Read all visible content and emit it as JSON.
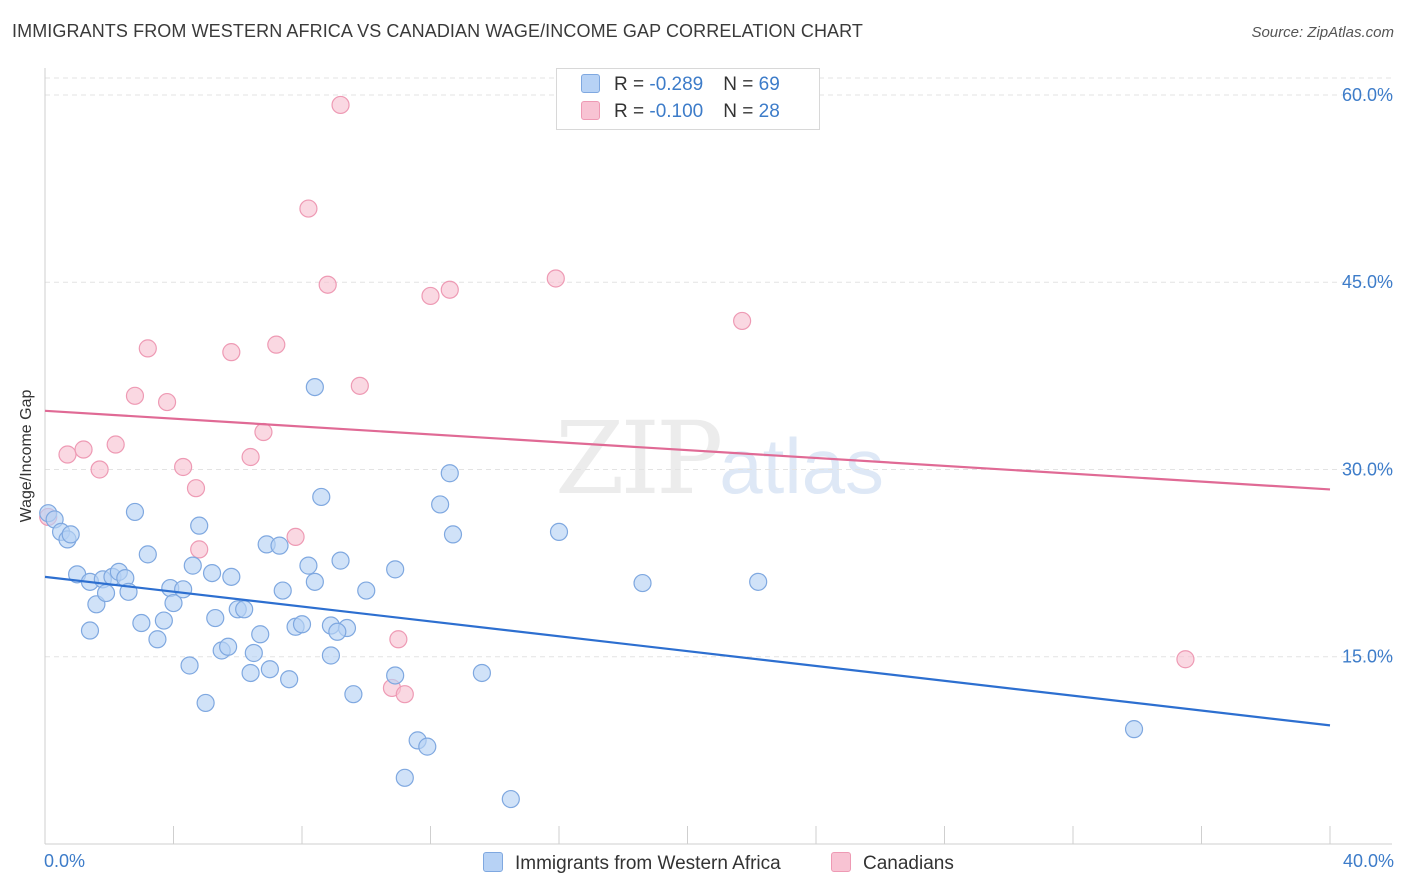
{
  "title": "IMMIGRANTS FROM WESTERN AFRICA VS CANADIAN WAGE/INCOME GAP CORRELATION CHART",
  "source": "Source: ZipAtlas.com",
  "watermark": {
    "zip": "ZIP",
    "atlas": "atlas"
  },
  "legend": {
    "rows": [
      {
        "r_label": "R = ",
        "r_value": "-0.289",
        "n_label": "N = ",
        "n_value": "69"
      },
      {
        "r_label": "R = ",
        "r_value": "-0.100",
        "n_label": "N = ",
        "n_value": "28"
      }
    ]
  },
  "bottom_legend": {
    "series1": "Immigrants from Western Africa",
    "series2": "Canadians"
  },
  "colors": {
    "blue_fill": "#b7d2f5",
    "blue_stroke": "#7fa8e0",
    "blue_line": "#2d6fd0",
    "pink_fill": "#f8c3d3",
    "pink_stroke": "#ee9ab4",
    "pink_line": "#e06a95",
    "tick_text": "#3d7cc9",
    "grid": "#e3e3e3"
  },
  "chart_data": {
    "type": "scatter",
    "title": "IMMIGRANTS FROM WESTERN AFRICA VS CANADIAN WAGE/INCOME GAP CORRELATION CHART",
    "xlabel": "",
    "ylabel": "Wage/Income Gap",
    "xlim": [
      0,
      40
    ],
    "ylim": [
      0,
      62
    ],
    "x_tick_labels": [
      "0.0%",
      "40.0%"
    ],
    "y_ticks": [
      15,
      30,
      45,
      60
    ],
    "y_tick_labels": [
      "15.0%",
      "30.0%",
      "45.0%",
      "60.0%"
    ],
    "grid": "horizontal dashed",
    "legend_position": "top-center",
    "series": [
      {
        "name": "Immigrants from Western Africa",
        "r": -0.289,
        "n": 69,
        "trend": {
          "x": [
            0,
            40
          ],
          "y": [
            21.4,
            9.5
          ]
        },
        "points": [
          [
            0.1,
            26.5
          ],
          [
            0.3,
            26.0
          ],
          [
            0.5,
            25.0
          ],
          [
            0.7,
            24.4
          ],
          [
            0.8,
            24.8
          ],
          [
            1.0,
            21.6
          ],
          [
            1.4,
            17.1
          ],
          [
            1.4,
            21.0
          ],
          [
            1.6,
            19.2
          ],
          [
            1.8,
            21.2
          ],
          [
            1.9,
            20.1
          ],
          [
            2.1,
            21.4
          ],
          [
            2.3,
            21.8
          ],
          [
            2.5,
            21.3
          ],
          [
            2.6,
            20.2
          ],
          [
            2.8,
            26.6
          ],
          [
            3.0,
            17.7
          ],
          [
            3.2,
            23.2
          ],
          [
            3.5,
            16.4
          ],
          [
            3.7,
            17.9
          ],
          [
            3.9,
            20.5
          ],
          [
            4.0,
            19.3
          ],
          [
            4.3,
            20.4
          ],
          [
            4.5,
            14.3
          ],
          [
            4.6,
            22.3
          ],
          [
            4.8,
            25.5
          ],
          [
            5.0,
            11.3
          ],
          [
            5.2,
            21.7
          ],
          [
            5.3,
            18.1
          ],
          [
            5.5,
            15.5
          ],
          [
            5.7,
            15.8
          ],
          [
            5.8,
            21.4
          ],
          [
            6.0,
            18.8
          ],
          [
            6.2,
            18.8
          ],
          [
            6.4,
            13.7
          ],
          [
            6.5,
            15.3
          ],
          [
            6.7,
            16.8
          ],
          [
            6.9,
            24.0
          ],
          [
            7.0,
            14.0
          ],
          [
            7.3,
            23.9
          ],
          [
            7.4,
            20.3
          ],
          [
            7.6,
            13.2
          ],
          [
            7.8,
            17.4
          ],
          [
            8.0,
            17.6
          ],
          [
            8.2,
            22.3
          ],
          [
            8.4,
            21.0
          ],
          [
            8.4,
            36.6
          ],
          [
            8.6,
            27.8
          ],
          [
            8.9,
            15.1
          ],
          [
            8.9,
            17.5
          ],
          [
            9.2,
            22.7
          ],
          [
            9.4,
            17.3
          ],
          [
            9.6,
            12.0
          ],
          [
            10.0,
            20.3
          ],
          [
            10.9,
            22.0
          ],
          [
            10.9,
            13.5
          ],
          [
            11.6,
            8.3
          ],
          [
            11.2,
            5.3
          ],
          [
            11.9,
            7.8
          ],
          [
            12.3,
            27.2
          ],
          [
            12.6,
            29.7
          ],
          [
            12.7,
            24.8
          ],
          [
            13.6,
            13.7
          ],
          [
            14.5,
            3.6
          ],
          [
            16.0,
            25.0
          ],
          [
            18.6,
            20.9
          ],
          [
            22.2,
            21.0
          ],
          [
            33.9,
            9.2
          ],
          [
            9.1,
            17.0
          ]
        ]
      },
      {
        "name": "Canadians",
        "r": -0.1,
        "n": 28,
        "trend": {
          "x": [
            0,
            40
          ],
          "y": [
            34.7,
            28.4
          ]
        },
        "points": [
          [
            0.1,
            26.2
          ],
          [
            0.7,
            31.2
          ],
          [
            1.2,
            31.6
          ],
          [
            1.7,
            30.0
          ],
          [
            2.2,
            32.0
          ],
          [
            2.8,
            35.9
          ],
          [
            3.2,
            39.7
          ],
          [
            3.8,
            35.4
          ],
          [
            4.3,
            30.2
          ],
          [
            4.7,
            28.5
          ],
          [
            4.8,
            23.6
          ],
          [
            5.8,
            39.4
          ],
          [
            6.4,
            31.0
          ],
          [
            6.8,
            33.0
          ],
          [
            7.2,
            40.0
          ],
          [
            7.8,
            24.6
          ],
          [
            8.2,
            50.9
          ],
          [
            8.8,
            44.8
          ],
          [
            9.2,
            59.2
          ],
          [
            9.8,
            36.7
          ],
          [
            10.8,
            12.5
          ],
          [
            11.0,
            16.4
          ],
          [
            11.2,
            12.0
          ],
          [
            12.0,
            43.9
          ],
          [
            12.6,
            44.4
          ],
          [
            15.9,
            45.3
          ],
          [
            21.7,
            41.9
          ],
          [
            35.5,
            14.8
          ]
        ]
      }
    ]
  }
}
